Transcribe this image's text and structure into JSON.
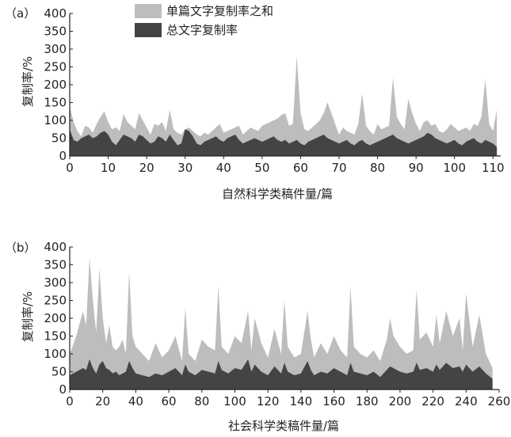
{
  "colors": {
    "total_area": "#bdbdbd",
    "overlap_area": "#444444",
    "axis": "#222222"
  },
  "chart_data": [
    {
      "type": "area",
      "panel_label": "（a）",
      "xlabel": "自然科学类稿件量/篇",
      "ylabel": "复制率/%",
      "xlim": [
        0,
        112
      ],
      "ylim": [
        0,
        400
      ],
      "xticks": [
        0,
        10,
        20,
        30,
        40,
        50,
        60,
        70,
        80,
        90,
        100,
        110
      ],
      "yticks": [
        0,
        50,
        100,
        150,
        200,
        250,
        300,
        350,
        400
      ],
      "legend": {
        "position": "top-center",
        "entries": [
          "单篇文字复制率之和",
          "总文字复制率"
        ]
      },
      "series": [
        {
          "name": "单篇文字复制率之和",
          "x": [
            0,
            1,
            2,
            3,
            4,
            5,
            6,
            7,
            8,
            9,
            10,
            11,
            12,
            13,
            14,
            15,
            16,
            17,
            18,
            19,
            20,
            21,
            22,
            23,
            24,
            25,
            26,
            27,
            28,
            29,
            30,
            31,
            32,
            33,
            34,
            35,
            36,
            37,
            38,
            39,
            40,
            41,
            42,
            43,
            44,
            45,
            46,
            47,
            48,
            49,
            50,
            51,
            52,
            53,
            54,
            55,
            56,
            57,
            58,
            59,
            60,
            61,
            62,
            63,
            64,
            65,
            66,
            67,
            68,
            69,
            70,
            71,
            72,
            73,
            74,
            75,
            76,
            77,
            78,
            79,
            80,
            81,
            82,
            83,
            84,
            85,
            86,
            87,
            88,
            89,
            90,
            91,
            92,
            93,
            94,
            95,
            96,
            97,
            98,
            99,
            100,
            101,
            102,
            103,
            104,
            105,
            106,
            107,
            108,
            109,
            110,
            111
          ],
          "values": [
            140,
            95,
            70,
            55,
            85,
            80,
            65,
            90,
            110,
            125,
            95,
            75,
            80,
            70,
            118,
            95,
            85,
            75,
            120,
            100,
            80,
            60,
            90,
            85,
            95,
            70,
            130,
            75,
            65,
            60,
            75,
            80,
            70,
            60,
            55,
            65,
            60,
            70,
            80,
            90,
            65,
            70,
            75,
            80,
            85,
            60,
            70,
            80,
            75,
            70,
            85,
            90,
            95,
            100,
            105,
            115,
            120,
            85,
            90,
            280,
            120,
            75,
            70,
            80,
            90,
            100,
            120,
            150,
            120,
            90,
            60,
            80,
            70,
            65,
            60,
            90,
            175,
            85,
            70,
            60,
            90,
            75,
            80,
            85,
            220,
            110,
            90,
            75,
            160,
            120,
            90,
            70,
            95,
            100,
            85,
            90,
            70,
            65,
            75,
            90,
            80,
            70,
            75,
            80,
            70,
            90,
            85,
            110,
            215,
            90,
            70,
            130
          ]
        },
        {
          "name": "总文字复制率",
          "x": [
            0,
            1,
            2,
            3,
            4,
            5,
            6,
            7,
            8,
            9,
            10,
            11,
            12,
            13,
            14,
            15,
            16,
            17,
            18,
            19,
            20,
            21,
            22,
            23,
            24,
            25,
            26,
            27,
            28,
            29,
            30,
            31,
            32,
            33,
            34,
            35,
            36,
            37,
            38,
            39,
            40,
            41,
            42,
            43,
            44,
            45,
            46,
            47,
            48,
            49,
            50,
            51,
            52,
            53,
            54,
            55,
            56,
            57,
            58,
            59,
            60,
            61,
            62,
            63,
            64,
            65,
            66,
            67,
            68,
            69,
            70,
            71,
            72,
            73,
            74,
            75,
            76,
            77,
            78,
            79,
            80,
            81,
            82,
            83,
            84,
            85,
            86,
            87,
            88,
            89,
            90,
            91,
            92,
            93,
            94,
            95,
            96,
            97,
            98,
            99,
            100,
            101,
            102,
            103,
            104,
            105,
            106,
            107,
            108,
            109,
            110,
            111
          ],
          "values": [
            75,
            45,
            40,
            50,
            55,
            60,
            50,
            55,
            65,
            70,
            60,
            40,
            30,
            45,
            60,
            55,
            50,
            40,
            60,
            55,
            45,
            35,
            40,
            55,
            50,
            40,
            60,
            45,
            30,
            35,
            75,
            70,
            55,
            35,
            30,
            40,
            45,
            50,
            55,
            45,
            40,
            50,
            55,
            60,
            45,
            35,
            40,
            45,
            50,
            45,
            40,
            45,
            50,
            55,
            45,
            40,
            45,
            35,
            40,
            45,
            35,
            30,
            40,
            45,
            50,
            55,
            60,
            50,
            45,
            40,
            35,
            40,
            45,
            35,
            30,
            40,
            45,
            35,
            30,
            35,
            40,
            45,
            50,
            55,
            60,
            50,
            45,
            40,
            35,
            40,
            45,
            50,
            55,
            65,
            60,
            50,
            45,
            40,
            35,
            40,
            45,
            35,
            30,
            40,
            45,
            50,
            40,
            35,
            45,
            40,
            35,
            25
          ]
        }
      ]
    },
    {
      "type": "area",
      "panel_label": "（b）",
      "xlabel": "社会科学类稿件量/篇",
      "ylabel": "复制率/%",
      "xlim": [
        0,
        260
      ],
      "ylim": [
        0,
        400
      ],
      "xticks": [
        0,
        20,
        40,
        60,
        80,
        100,
        120,
        140,
        160,
        180,
        200,
        220,
        240,
        260
      ],
      "yticks": [
        0,
        50,
        100,
        150,
        200,
        250,
        300,
        350,
        400
      ],
      "series": [
        {
          "name": "单篇文字复制率之和",
          "x": [
            0,
            4,
            8,
            10,
            12,
            14,
            16,
            18,
            20,
            22,
            24,
            26,
            28,
            30,
            32,
            34,
            36,
            38,
            40,
            44,
            48,
            52,
            56,
            60,
            64,
            68,
            70,
            72,
            76,
            80,
            84,
            88,
            90,
            92,
            96,
            100,
            104,
            108,
            110,
            112,
            116,
            120,
            124,
            128,
            130,
            132,
            136,
            140,
            144,
            146,
            148,
            152,
            156,
            160,
            164,
            168,
            170,
            172,
            176,
            180,
            184,
            188,
            192,
            194,
            196,
            200,
            204,
            208,
            210,
            212,
            216,
            220,
            222,
            224,
            228,
            232,
            236,
            238,
            240,
            244,
            248,
            252,
            256
          ],
          "values": [
            100,
            150,
            220,
            180,
            370,
            250,
            160,
            340,
            200,
            130,
            180,
            120,
            110,
            120,
            140,
            100,
            330,
            150,
            120,
            100,
            80,
            130,
            90,
            110,
            150,
            80,
            230,
            100,
            80,
            140,
            120,
            110,
            290,
            120,
            100,
            150,
            130,
            220,
            110,
            200,
            130,
            90,
            170,
            100,
            250,
            120,
            90,
            100,
            220,
            140,
            90,
            130,
            100,
            150,
            110,
            90,
            290,
            120,
            100,
            90,
            110,
            80,
            140,
            200,
            150,
            120,
            100,
            110,
            280,
            140,
            160,
            120,
            210,
            130,
            220,
            150,
            200,
            110,
            270,
            120,
            210,
            100,
            60
          ]
        },
        {
          "name": "总文字复制率",
          "x": [
            0,
            4,
            8,
            10,
            12,
            14,
            16,
            18,
            20,
            22,
            24,
            26,
            28,
            30,
            32,
            34,
            36,
            38,
            40,
            44,
            48,
            52,
            56,
            60,
            64,
            68,
            70,
            72,
            76,
            80,
            84,
            88,
            90,
            92,
            96,
            100,
            104,
            108,
            110,
            112,
            116,
            120,
            124,
            128,
            130,
            132,
            136,
            140,
            144,
            146,
            148,
            152,
            156,
            160,
            164,
            168,
            170,
            172,
            176,
            180,
            184,
            188,
            192,
            194,
            196,
            200,
            204,
            208,
            210,
            212,
            216,
            220,
            222,
            224,
            228,
            232,
            236,
            238,
            240,
            244,
            248,
            252,
            256
          ],
          "values": [
            40,
            50,
            60,
            55,
            85,
            60,
            45,
            70,
            80,
            60,
            55,
            45,
            50,
            40,
            45,
            50,
            80,
            60,
            45,
            40,
            35,
            45,
            40,
            50,
            60,
            40,
            70,
            50,
            40,
            55,
            50,
            45,
            80,
            55,
            45,
            60,
            55,
            85,
            50,
            70,
            50,
            40,
            65,
            45,
            75,
            50,
            40,
            45,
            80,
            55,
            40,
            50,
            45,
            60,
            50,
            40,
            75,
            50,
            45,
            40,
            50,
            35,
            55,
            65,
            60,
            50,
            45,
            50,
            75,
            55,
            60,
            50,
            70,
            55,
            75,
            60,
            65,
            50,
            70,
            50,
            65,
            45,
            30
          ]
        }
      ]
    }
  ]
}
